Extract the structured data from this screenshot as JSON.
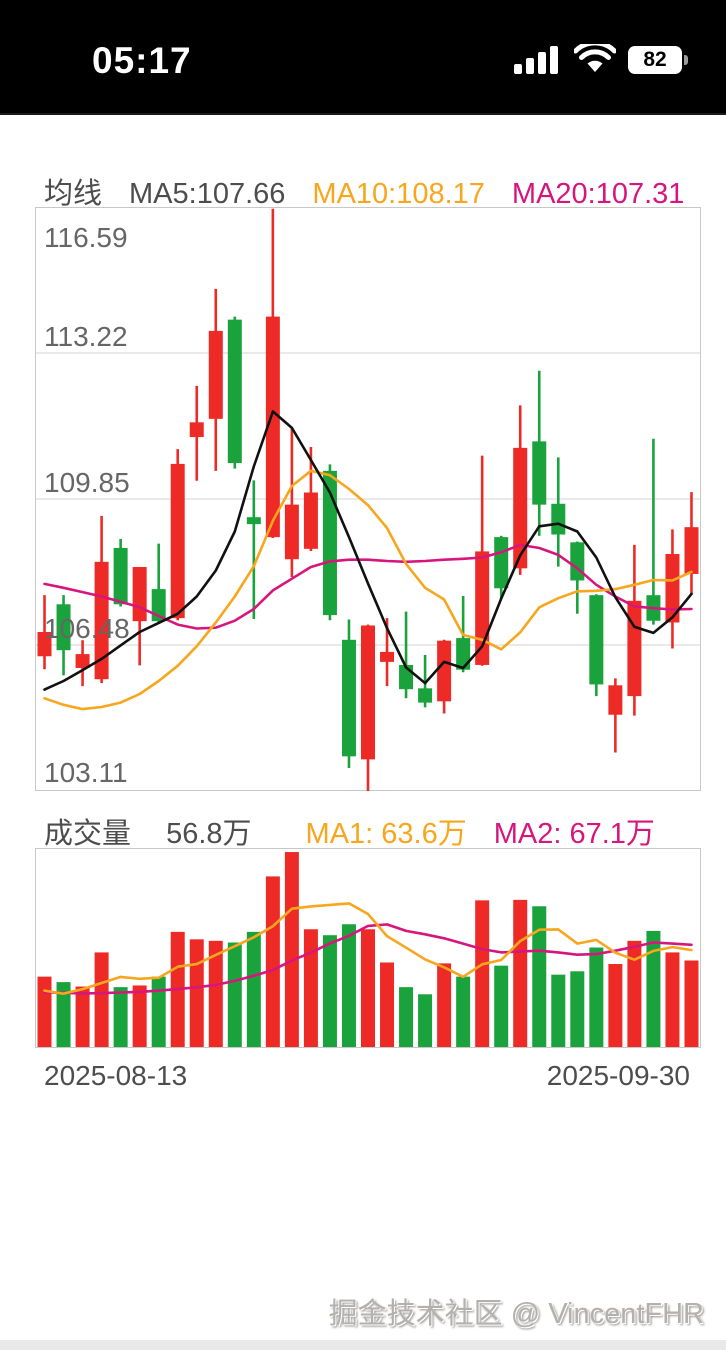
{
  "status_bar": {
    "time": "05:17",
    "battery_level": "82"
  },
  "legend_main": {
    "prefix": "均线",
    "ma5_label": "MA5:107.66",
    "ma10_label": "MA10:108.17",
    "ma20_label": "MA20:107.31"
  },
  "legend_volume": {
    "prefix": "成交量",
    "current_label": "56.8万",
    "ma1_label": "MA1: 63.6万",
    "ma2_label": "MA2: 67.1万"
  },
  "x_axis": {
    "start_date": "2025-08-13",
    "end_date": "2025-09-30"
  },
  "watermark": "掘金技术社区 @ VincentFHR",
  "colors": {
    "up": "#ee2a26",
    "down": "#1aa33c",
    "ma5": "#111111",
    "ma10": "#f7a61e",
    "ma20": "#d6167d",
    "grid": "#dcdcdc",
    "border": "#c8c8c8",
    "label": "#666666"
  },
  "chart_data": {
    "type": "candlestick+volume",
    "title": "均线 / 成交量 (K-line daily chart, 2025-08-13 to 2025-09-30)",
    "y_axis_labels": [
      "116.59",
      "113.22",
      "109.85",
      "106.48",
      "103.11"
    ],
    "price_range": [
      103.11,
      116.59
    ],
    "volume_axis_max": 130,
    "volume_unit": "万",
    "legend_values": {
      "ma5": 107.66,
      "ma10": 108.17,
      "ma20": 107.31,
      "volume": 56.8,
      "vol_ma1": 63.6,
      "vol_ma2": 67.1
    },
    "candles": [
      {
        "o": 106.22,
        "h": 107.63,
        "l": 105.92,
        "c": 106.78,
        "v": 46.2
      },
      {
        "o": 107.42,
        "h": 107.63,
        "l": 105.78,
        "c": 106.36,
        "v": 42.6
      },
      {
        "o": 105.95,
        "h": 106.59,
        "l": 105.53,
        "c": 106.27,
        "v": 39.7
      },
      {
        "o": 105.69,
        "h": 109.46,
        "l": 105.6,
        "c": 108.4,
        "v": 62.1
      },
      {
        "o": 108.72,
        "h": 108.93,
        "l": 107.37,
        "c": 107.42,
        "v": 39.3
      },
      {
        "o": 107.03,
        "h": 108.28,
        "l": 106.01,
        "c": 108.28,
        "v": 40.4
      },
      {
        "o": 107.77,
        "h": 108.82,
        "l": 106.99,
        "c": 107.03,
        "v": 46.2
      },
      {
        "o": 107.1,
        "h": 111.0,
        "l": 107.05,
        "c": 110.66,
        "v": 75.6
      },
      {
        "o": 111.28,
        "h": 112.46,
        "l": 110.27,
        "c": 111.62,
        "v": 70.7
      },
      {
        "o": 111.7,
        "h": 114.7,
        "l": 110.5,
        "c": 113.73,
        "v": 69.7
      },
      {
        "o": 113.99,
        "h": 114.06,
        "l": 110.55,
        "c": 110.68,
        "v": 68.6
      },
      {
        "o": 109.43,
        "h": 110.28,
        "l": 107.08,
        "c": 109.27,
        "v": 75.6
      },
      {
        "o": 108.97,
        "h": 116.55,
        "l": 108.95,
        "c": 114.06,
        "v": 112.0
      },
      {
        "o": 108.46,
        "h": 111.5,
        "l": 108.05,
        "c": 109.72,
        "v": 128.0
      },
      {
        "o": 108.7,
        "h": 111.05,
        "l": 108.65,
        "c": 110.0,
        "v": 77.3
      },
      {
        "o": 110.5,
        "h": 110.65,
        "l": 107.05,
        "c": 107.17,
        "v": 73.4
      },
      {
        "o": 106.6,
        "h": 107.07,
        "l": 103.64,
        "c": 103.91,
        "v": 80.6
      },
      {
        "o": 103.84,
        "h": 106.95,
        "l": 103.1,
        "c": 106.93,
        "v": 77.3
      },
      {
        "o": 106.09,
        "h": 107.1,
        "l": 105.53,
        "c": 106.32,
        "v": 55.5
      },
      {
        "o": 106.02,
        "h": 107.25,
        "l": 105.25,
        "c": 105.46,
        "v": 39.3
      },
      {
        "o": 105.48,
        "h": 106.25,
        "l": 105.04,
        "c": 105.15,
        "v": 34.6
      },
      {
        "o": 105.18,
        "h": 106.6,
        "l": 104.9,
        "c": 106.58,
        "v": 54.9
      },
      {
        "o": 106.64,
        "h": 107.61,
        "l": 105.85,
        "c": 105.91,
        "v": 46.2
      },
      {
        "o": 106.02,
        "h": 110.85,
        "l": 106.0,
        "c": 108.64,
        "v": 96.3
      },
      {
        "o": 108.97,
        "h": 109.0,
        "l": 107.55,
        "c": 107.79,
        "v": 53.4
      },
      {
        "o": 108.25,
        "h": 112.01,
        "l": 108.1,
        "c": 111.03,
        "v": 96.6
      },
      {
        "o": 111.18,
        "h": 112.81,
        "l": 109.0,
        "c": 109.72,
        "v": 92.4
      },
      {
        "o": 109.74,
        "h": 110.81,
        "l": 108.29,
        "c": 109.03,
        "v": 47.5
      },
      {
        "o": 108.85,
        "h": 108.87,
        "l": 107.2,
        "c": 107.97,
        "v": 49.7
      },
      {
        "o": 107.63,
        "h": 107.65,
        "l": 105.3,
        "c": 105.57,
        "v": 65.3
      },
      {
        "o": 104.87,
        "h": 105.71,
        "l": 104.0,
        "c": 105.55,
        "v": 54.5
      },
      {
        "o": 105.3,
        "h": 108.79,
        "l": 104.85,
        "c": 107.5,
        "v": 69.7
      },
      {
        "o": 107.63,
        "h": 111.24,
        "l": 106.95,
        "c": 107.04,
        "v": 76.2
      },
      {
        "o": 107.0,
        "h": 109.15,
        "l": 106.4,
        "c": 108.58,
        "v": 62.1
      },
      {
        "o": 108.12,
        "h": 110.01,
        "l": 107.65,
        "c": 109.2,
        "v": 56.8
      }
    ],
    "ma5": [
      105.45,
      105.65,
      105.9,
      106.16,
      106.47,
      106.78,
      106.99,
      107.2,
      107.6,
      108.2,
      109.1,
      110.6,
      111.87,
      111.49,
      110.75,
      110.0,
      108.97,
      107.9,
      106.87,
      105.96,
      105.6,
      106.09,
      105.95,
      106.45,
      107.55,
      108.55,
      109.22,
      109.28,
      109.1,
      108.5,
      107.58,
      106.9,
      106.76,
      107.12,
      107.66
    ],
    "ma10": [
      105.25,
      105.1,
      105.0,
      105.05,
      105.15,
      105.35,
      105.65,
      106.0,
      106.45,
      107.0,
      107.6,
      108.3,
      109.35,
      110.15,
      110.5,
      110.4,
      110.08,
      109.71,
      109.18,
      108.35,
      107.8,
      107.53,
      106.71,
      106.6,
      106.38,
      106.77,
      107.35,
      107.56,
      107.72,
      107.73,
      107.77,
      107.87,
      107.98,
      107.97,
      108.17
    ],
    "ma20": [
      107.89,
      107.8,
      107.7,
      107.6,
      107.48,
      107.35,
      107.15,
      106.95,
      106.86,
      106.88,
      107.04,
      107.31,
      107.74,
      108.01,
      108.28,
      108.41,
      108.45,
      108.45,
      108.42,
      108.4,
      108.42,
      108.45,
      108.47,
      108.5,
      108.62,
      108.79,
      108.72,
      108.56,
      108.25,
      107.87,
      107.6,
      107.37,
      107.33,
      107.3,
      107.31
    ],
    "vol_ma1": [
      37.0,
      35.0,
      38.0,
      42.0,
      46.0,
      44.8,
      45.5,
      52.7,
      54.4,
      60.5,
      66.2,
      72.0,
      79.3,
      90.8,
      92.3,
      93.3,
      94.3,
      87.3,
      72.8,
      65.2,
      57.5,
      52.3,
      46.1,
      54.3,
      57.1,
      69.5,
      77.0,
      77.2,
      67.9,
      70.3,
      61.9,
      57.3,
      63.1,
      65.6,
      63.6
    ],
    "vol_ma2": [
      36.0,
      35.6,
      35.2,
      35.4,
      35.8,
      36.2,
      37.0,
      38.0,
      39.2,
      40.8,
      43.4,
      46.8,
      50.5,
      56.7,
      62.0,
      68.0,
      73.0,
      79.5,
      80.5,
      76.2,
      74.0,
      71.4,
      67.9,
      64.3,
      62.1,
      62.7,
      63.2,
      62.1,
      60.6,
      61.0,
      63.2,
      65.8,
      68.6,
      67.9,
      67.1
    ]
  }
}
